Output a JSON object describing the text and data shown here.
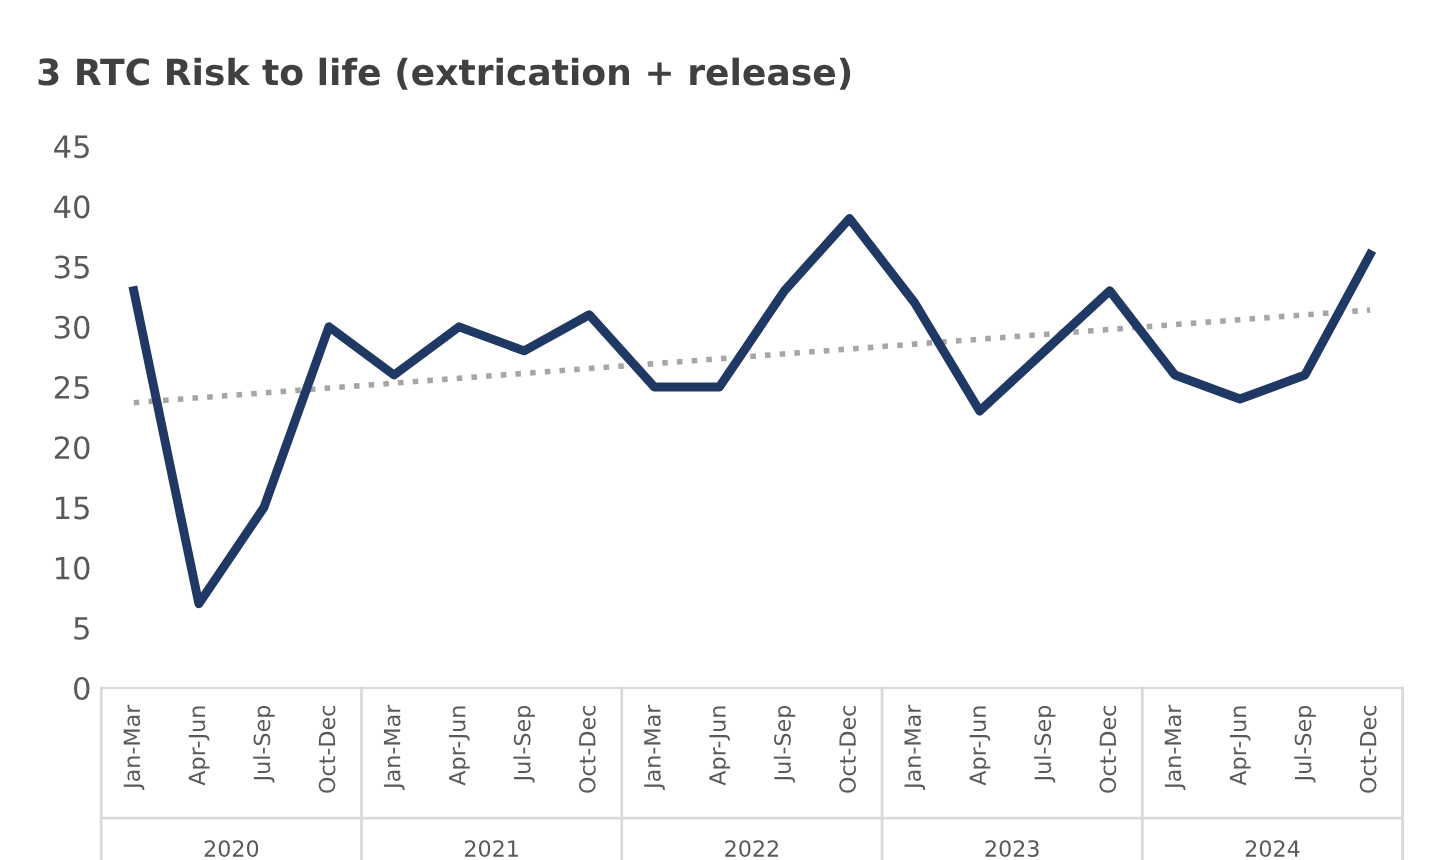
{
  "chart_data": {
    "type": "line",
    "title": "3 RTC Risk to life (extrication + release)",
    "categories": [
      "Jan-Mar",
      "Apr-Jun",
      "Jul-Sep",
      "Oct-Dec",
      "Jan-Mar",
      "Apr-Jun",
      "Jul-Sep",
      "Oct-Dec",
      "Jan-Mar",
      "Apr-Jun",
      "Jul-Sep",
      "Oct-Dec",
      "Jan-Mar",
      "Apr-Jun",
      "Jul-Sep",
      "Oct-Dec",
      "Jan-Mar",
      "Apr-Jun",
      "Jul-Sep",
      "Oct-Dec"
    ],
    "series": [
      {
        "color": "#203864",
        "line_style": "solid",
        "values": [
          33,
          7,
          15,
          30,
          26,
          30,
          28,
          31,
          25,
          25,
          33,
          39,
          32,
          23,
          28,
          33,
          26,
          24,
          26,
          36
        ]
      },
      {
        "color": "#a6a6a6",
        "line_style": "dotted",
        "values": [
          23.7,
          null,
          null,
          null,
          null,
          null,
          null,
          null,
          null,
          null,
          null,
          null,
          null,
          null,
          null,
          null,
          null,
          null,
          null,
          31.4
        ]
      }
    ],
    "annotations": [
      "2020",
      "2021",
      "2022",
      "2023",
      "2024"
    ],
    "ylim": [
      0,
      45
    ],
    "yticks": [
      0,
      5,
      10,
      15,
      20,
      25,
      30,
      35,
      40,
      45
    ],
    "grid": false,
    "legend": false,
    "marker": "none"
  }
}
